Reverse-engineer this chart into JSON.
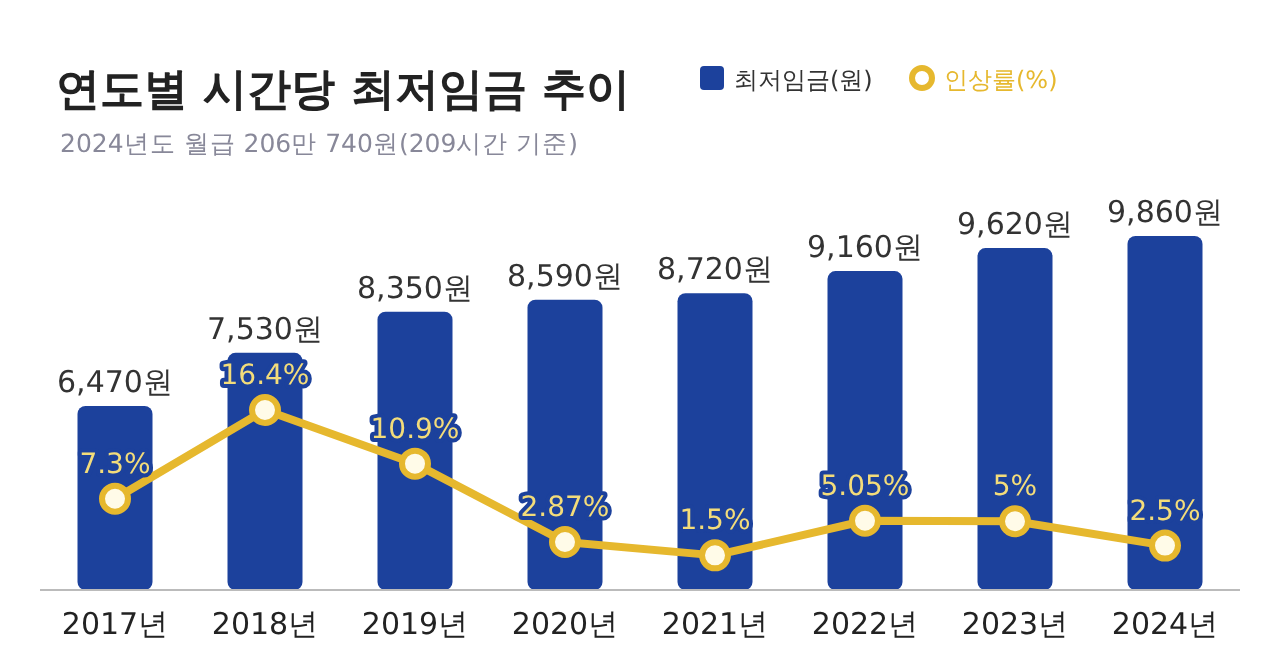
{
  "chart_data": {
    "type": "bar",
    "title": "연도별 시간당 최저임금 추이",
    "subtitle": "2024년도 월급 206만 740원(209시간 기준)",
    "categories": [
      "2017년",
      "2018년",
      "2019년",
      "2020년",
      "2021년",
      "2022년",
      "2023년",
      "2024년"
    ],
    "series": [
      {
        "name": "최저임금(원)",
        "color": "#1c419c",
        "values": [
          6470,
          7530,
          8350,
          8590,
          8720,
          9160,
          9620,
          9860
        ],
        "value_labels": [
          "6,470원",
          "7,530원",
          "8,350원",
          "8,590원",
          "8,720원",
          "9,160원",
          "9,620원",
          "9,860원"
        ]
      },
      {
        "name": "인상률(%)",
        "type": "line",
        "axis": "y2",
        "color": "#e6b82e",
        "values": [
          7.3,
          16.4,
          10.9,
          2.87,
          1.5,
          5.05,
          5,
          2.5
        ],
        "value_labels": [
          "7.3%",
          "16.4%",
          "10.9%",
          "2.87%",
          "1.5%",
          "5.05%",
          "5%",
          "2.5%"
        ]
      }
    ],
    "ylim": [
      2800,
      9860
    ],
    "tick_labels": "x",
    "grid": false,
    "legend": "top",
    "marker": "circle",
    "line_style": "solid"
  }
}
